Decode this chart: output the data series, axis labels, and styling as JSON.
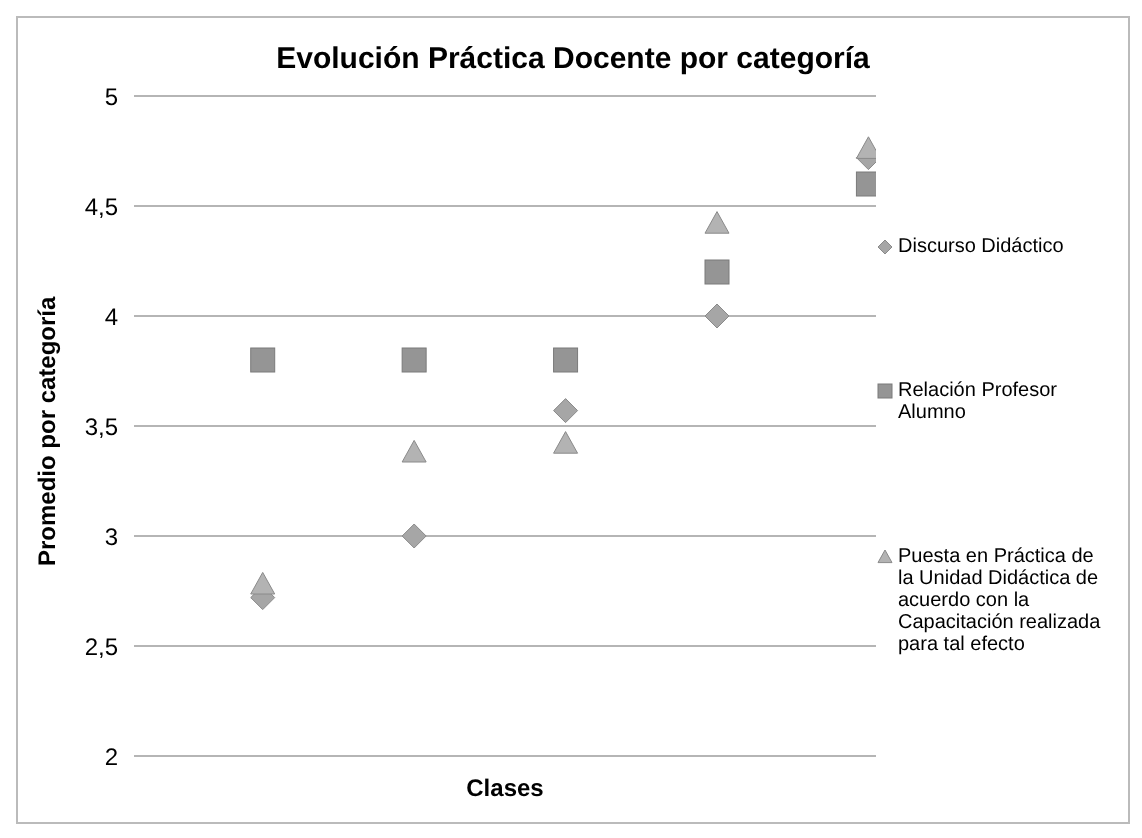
{
  "chart_data": {
    "type": "scatter",
    "title": "Evolución Práctica Docente por categoría",
    "xlabel": "Clases",
    "ylabel": "Promedio por categoría",
    "categories": [
      null,
      null,
      null,
      null,
      null
    ],
    "series": [
      {
        "name": "Discurso Didáctico",
        "color": "#a6a6a6",
        "marker": "diamond",
        "values": [
          2.72,
          3.0,
          3.57,
          4.0,
          4.72
        ]
      },
      {
        "name": "Relación Profesor Alumno",
        "color": "#959595",
        "marker": "square",
        "values": [
          3.8,
          3.8,
          3.8,
          4.2,
          4.6
        ]
      },
      {
        "name": "Puesta en Práctica de la Unidad Didáctica de acuerdo con la Capacitación realizada para tal efecto",
        "color": "#b3b3b3",
        "marker": "triangle",
        "values": [
          2.78,
          3.38,
          3.42,
          4.42,
          4.76
        ]
      }
    ],
    "ylim": [
      2,
      5
    ],
    "yticks": [
      {
        "value": 2,
        "label": "2"
      },
      {
        "value": 2.5,
        "label": "2,5"
      },
      {
        "value": 3,
        "label": "3"
      },
      {
        "value": 3.5,
        "label": "3,5"
      },
      {
        "value": 4,
        "label": "4"
      },
      {
        "value": 4.5,
        "label": "4,5"
      },
      {
        "value": 5,
        "label": "5"
      }
    ],
    "grid": "y",
    "legend": "right",
    "tick_labels": "y"
  }
}
